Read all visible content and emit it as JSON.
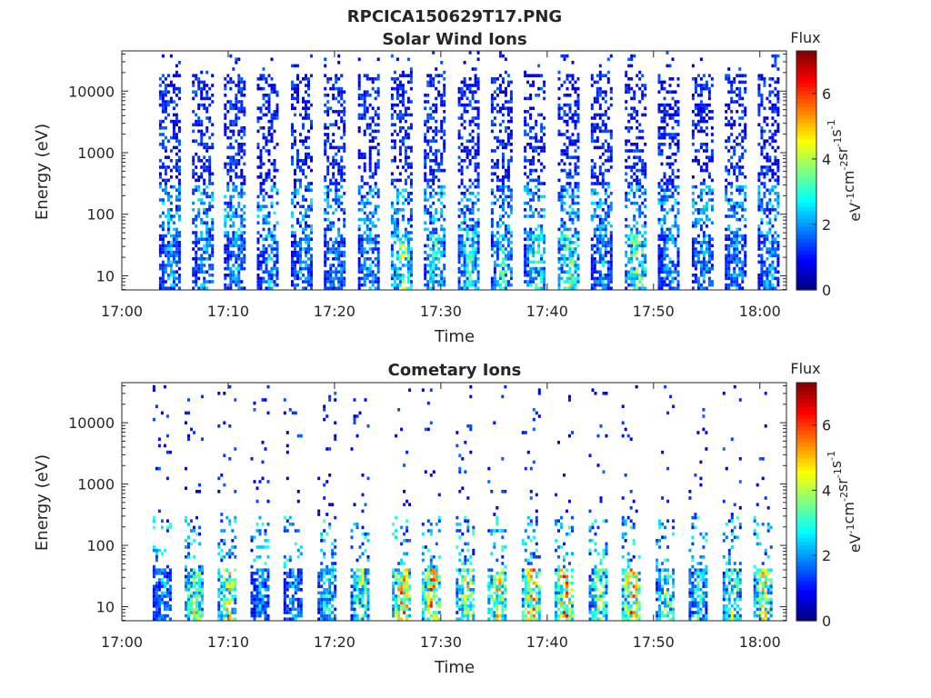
{
  "figure_title": "RPCICA150629T17.PNG",
  "colors": {
    "axis": "#262626",
    "colormap": [
      "#00007f",
      "#0000ff",
      "#007fff",
      "#00ffff",
      "#7fff7f",
      "#ffff00",
      "#ff7f00",
      "#ff0000",
      "#7f0000"
    ]
  },
  "chart_data": [
    {
      "type": "heatmap",
      "title": "Solar Wind Ions",
      "xlabel": "Time",
      "ylabel": "Energy (eV)",
      "x_ticks": [
        "17:00",
        "17:10",
        "17:20",
        "17:30",
        "17:40",
        "17:50",
        "18:00"
      ],
      "x_tick_minutes": [
        0,
        10,
        20,
        30,
        40,
        50,
        60
      ],
      "xlim_minutes": [
        0,
        62.5
      ],
      "y_scale": "log",
      "ylim": [
        5.9,
        45000
      ],
      "y_ticks": [
        "10",
        "100",
        "1000",
        "10000"
      ],
      "y_tick_values": [
        10,
        100,
        1000,
        10000
      ],
      "colorbar": {
        "title": "Flux",
        "label_parts": [
          "eV",
          "-1",
          "cm",
          "-2",
          "sr",
          "-1",
          "s",
          "-1"
        ],
        "ticks": [
          "0",
          "2",
          "4",
          "6"
        ],
        "tick_values": [
          0,
          2,
          4,
          6
        ],
        "range": [
          0,
          7.3
        ]
      },
      "sweep_start_minutes": [
        3.5,
        6.6,
        9.6,
        12.7,
        15.9,
        19.0,
        22.2,
        25.3,
        28.4,
        31.6,
        34.7,
        37.8,
        41.0,
        44.1,
        47.3,
        50.4,
        53.6,
        56.7,
        59.8
      ],
      "peak_flux_by_sweep": [
        3,
        3,
        3,
        3,
        3,
        3,
        3,
        5,
        4,
        4,
        4,
        4,
        5,
        3,
        5,
        3,
        3,
        3,
        3
      ]
    },
    {
      "type": "heatmap",
      "title": "Cometary Ions",
      "xlabel": "Time",
      "ylabel": "Energy (eV)",
      "x_ticks": [
        "17:00",
        "17:10",
        "17:20",
        "17:30",
        "17:40",
        "17:50",
        "18:00"
      ],
      "x_tick_minutes": [
        0,
        10,
        20,
        30,
        40,
        50,
        60
      ],
      "xlim_minutes": [
        0,
        62.5
      ],
      "y_scale": "log",
      "ylim": [
        5.9,
        45000
      ],
      "y_ticks": [
        "10",
        "100",
        "1000",
        "10000"
      ],
      "y_tick_values": [
        10,
        100,
        1000,
        10000
      ],
      "colorbar": {
        "title": "Flux",
        "label_parts": [
          "eV",
          "-1",
          "cm",
          "-2",
          "sr",
          "-1",
          "s",
          "-1"
        ],
        "ticks": [
          "0",
          "2",
          "4",
          "6"
        ],
        "tick_values": [
          0,
          2,
          4,
          6
        ],
        "range": [
          0,
          7.3
        ]
      },
      "sweep_start_minutes": [
        2.9,
        5.9,
        9.0,
        12.1,
        15.2,
        18.4,
        21.5,
        25.4,
        28.2,
        31.4,
        34.4,
        37.6,
        40.7,
        43.9,
        47.0,
        50.2,
        53.3,
        56.5,
        59.4
      ],
      "peak_flux_by_sweep": [
        3,
        5.5,
        6,
        3,
        3,
        4,
        5,
        7,
        7,
        6,
        6,
        7,
        7,
        5,
        7,
        5,
        4,
        5,
        6
      ]
    }
  ]
}
